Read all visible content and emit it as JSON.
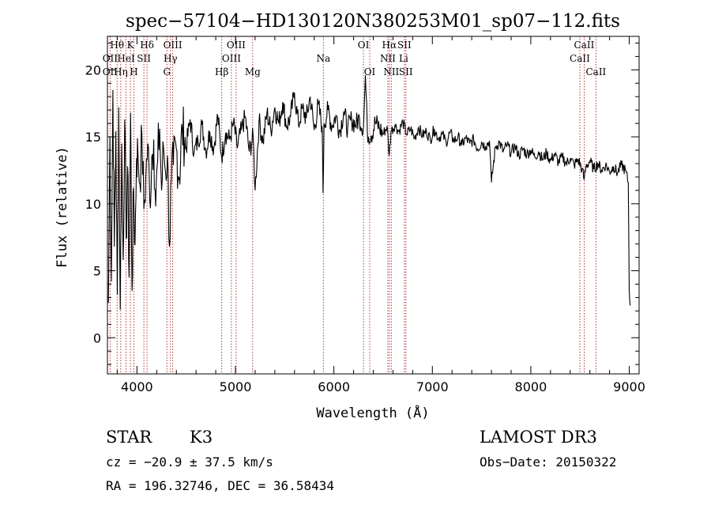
{
  "chart_data": {
    "type": "line",
    "title": "spec−57104−HD130120N380253M01_sp07−112.fits",
    "xlabel": "Wavelength (Å)",
    "ylabel": "Flux (relative)",
    "xlim": [
      3700,
      9100
    ],
    "ylim": [
      -2.7,
      22.5
    ],
    "xticks": [
      4000,
      5000,
      6000,
      7000,
      8000,
      9000
    ],
    "xtick_labels": [
      "4000",
      "5000",
      "6000",
      "7000",
      "8000",
      "9000"
    ],
    "yticks": [
      0,
      5,
      10,
      15,
      20
    ],
    "ytick_labels": [
      "0",
      "5",
      "10",
      "15",
      "20"
    ],
    "grid": false,
    "series": [
      {
        "name": "spectrum",
        "color": "#000000",
        "x": [
          3710,
          3725,
          3740,
          3755,
          3770,
          3785,
          3800,
          3815,
          3830,
          3845,
          3860,
          3875,
          3890,
          3905,
          3920,
          3935,
          3950,
          3965,
          3980,
          3995,
          4010,
          4030,
          4050,
          4070,
          4090,
          4110,
          4130,
          4150,
          4170,
          4190,
          4210,
          4230,
          4250,
          4270,
          4290,
          4310,
          4330,
          4350,
          4370,
          4400,
          4430,
          4460,
          4500,
          4540,
          4580,
          4620,
          4660,
          4700,
          4740,
          4780,
          4820,
          4860,
          4900,
          4940,
          4980,
          5020,
          5060,
          5100,
          5140,
          5180,
          5200,
          5240,
          5280,
          5320,
          5360,
          5400,
          5440,
          5480,
          5520,
          5560,
          5600,
          5640,
          5680,
          5720,
          5760,
          5800,
          5840,
          5880,
          5890,
          5900,
          5940,
          5980,
          6020,
          6060,
          6100,
          6140,
          6180,
          6220,
          6260,
          6300,
          6320,
          6340,
          6380,
          6420,
          6460,
          6500,
          6540,
          6562,
          6580,
          6620,
          6660,
          6700,
          6740,
          6780,
          6820,
          6860,
          6900,
          6940,
          6980,
          7020,
          7060,
          7100,
          7140,
          7180,
          7220,
          7260,
          7300,
          7340,
          7380,
          7420,
          7460,
          7500,
          7540,
          7580,
          7600,
          7640,
          7680,
          7720,
          7760,
          7800,
          7840,
          7880,
          7920,
          7960,
          8000,
          8040,
          8080,
          8120,
          8160,
          8200,
          8240,
          8280,
          8320,
          8360,
          8400,
          8440,
          8480,
          8520,
          8542,
          8560,
          8600,
          8640,
          8680,
          8720,
          8760,
          8800,
          8840,
          8880,
          8920,
          8960,
          8990,
          9000,
          9010
        ],
        "y": [
          2.6,
          15.0,
          4.2,
          18.5,
          6.8,
          15.4,
          3.2,
          17.2,
          2.1,
          14.5,
          5.8,
          16.3,
          7.4,
          12.8,
          4.5,
          16.8,
          3.5,
          11.2,
          6.9,
          13.4,
          13.8,
          11.5,
          15.2,
          9.6,
          12.1,
          14.5,
          10.2,
          13.5,
          14.8,
          9.8,
          13.2,
          15.6,
          11.0,
          14.2,
          12.4,
          13.6,
          6.8,
          11.8,
          12.9,
          14.1,
          12.0,
          15.6,
          14.2,
          16.3,
          13.8,
          14.7,
          15.9,
          13.9,
          15.4,
          14.1,
          16.6,
          13.5,
          15.3,
          14.8,
          16.0,
          14.2,
          15.5,
          16.5,
          13.9,
          15.0,
          11.0,
          16.2,
          14.6,
          16.8,
          15.5,
          17.2,
          16.0,
          17.6,
          15.8,
          16.5,
          18.3,
          15.9,
          17.1,
          16.4,
          18.0,
          15.5,
          17.4,
          15.8,
          10.8,
          16.0,
          17.0,
          15.8,
          16.6,
          15.4,
          16.9,
          15.6,
          16.3,
          15.9,
          16.4,
          15.6,
          19.6,
          15.3,
          15.1,
          16.1,
          15.7,
          15.2,
          15.8,
          13.6,
          15.4,
          15.9,
          15.4,
          16.1,
          15.2,
          15.6,
          14.9,
          15.7,
          15.1,
          15.4,
          14.8,
          15.6,
          14.9,
          15.2,
          14.6,
          15.3,
          14.7,
          15.0,
          14.4,
          14.9,
          14.5,
          14.8,
          14.1,
          14.6,
          14.3,
          14.7,
          11.6,
          14.2,
          14.6,
          13.9,
          14.4,
          13.8,
          14.3,
          13.6,
          14.1,
          13.7,
          14.0,
          13.5,
          13.9,
          13.3,
          13.8,
          13.2,
          13.7,
          13.1,
          13.5,
          13.0,
          13.4,
          12.9,
          13.3,
          12.6,
          11.8,
          12.8,
          13.2,
          12.6,
          13.0,
          12.5,
          12.9,
          12.4,
          12.8,
          12.3,
          12.9,
          12.5,
          11.6,
          3.5,
          2.4
        ]
      }
    ],
    "lines": {
      "color": "#b22222",
      "positions": [
        3727,
        3798,
        3835,
        3889,
        3934,
        3969,
        4070,
        4102,
        4304,
        4340,
        4363,
        4861,
        4959,
        5007,
        5175,
        5893,
        6300,
        6364,
        6548,
        6563,
        6583,
        6716,
        6731,
        8498,
        8542,
        8662
      ],
      "labels": [
        {
          "text": "Hθ",
          "x": 3798,
          "row": 1
        },
        {
          "text": "K",
          "x": 3934,
          "row": 1
        },
        {
          "text": "Hδ",
          "x": 4102,
          "row": 1
        },
        {
          "text": "OIII",
          "x": 4363,
          "row": 1
        },
        {
          "text": "OIII",
          "x": 5007,
          "row": 1
        },
        {
          "text": "OI",
          "x": 6300,
          "row": 1
        },
        {
          "text": "Hα",
          "x": 6563,
          "row": 1
        },
        {
          "text": "SII",
          "x": 6716,
          "row": 1
        },
        {
          "text": "CaII",
          "x": 8542,
          "row": 1
        },
        {
          "text": "OII",
          "x": 3727,
          "row": 2
        },
        {
          "text": "HeI",
          "x": 3889,
          "row": 2
        },
        {
          "text": "SII",
          "x": 4070,
          "row": 2
        },
        {
          "text": "Hγ",
          "x": 4340,
          "row": 2
        },
        {
          "text": "OIII",
          "x": 4959,
          "row": 2
        },
        {
          "text": "Na",
          "x": 5893,
          "row": 2
        },
        {
          "text": "NII",
          "x": 6548,
          "row": 2
        },
        {
          "text": "Li",
          "x": 6708,
          "row": 2
        },
        {
          "text": "CaII",
          "x": 8498,
          "row": 2
        },
        {
          "text": "OII",
          "x": 3727,
          "row": 3
        },
        {
          "text": "Hη",
          "x": 3835,
          "row": 3
        },
        {
          "text": "H",
          "x": 3969,
          "row": 3
        },
        {
          "text": "G",
          "x": 4304,
          "row": 3
        },
        {
          "text": "Hβ",
          "x": 4861,
          "row": 3
        },
        {
          "text": "Mg",
          "x": 5175,
          "row": 3
        },
        {
          "text": "OI",
          "x": 6364,
          "row": 3
        },
        {
          "text": "NII",
          "x": 6583,
          "row": 3
        },
        {
          "text": "SII",
          "x": 6731,
          "row": 3
        },
        {
          "text": "CaII",
          "x": 8662,
          "row": 3
        }
      ]
    }
  },
  "info": {
    "object_type": "STAR",
    "subclass": "K3",
    "survey": "LAMOST DR3",
    "cz": "cz = −20.9 ± 37.5 km/s",
    "obs_date": "Obs−Date: 20150322",
    "coords": "RA = 196.32746, DEC =  36.58434"
  }
}
